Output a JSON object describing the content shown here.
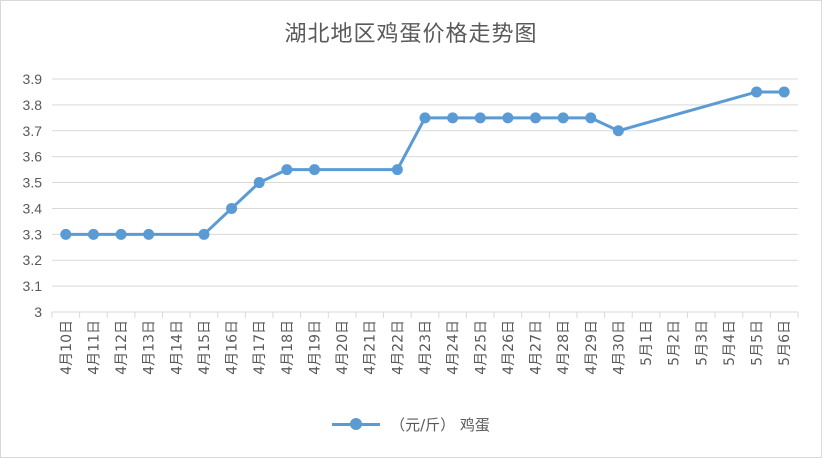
{
  "chart_data": {
    "type": "line",
    "title": "湖北地区鸡蛋价格走势图",
    "categories": [
      "4月10日",
      "4月11日",
      "4月12日",
      "4月13日",
      "4月14日",
      "4月15日",
      "4月16日",
      "4月17日",
      "4月18日",
      "4月19日",
      "4月20日",
      "4月21日",
      "4月22日",
      "4月23日",
      "4月24日",
      "4月25日",
      "4月26日",
      "4月27日",
      "4月28日",
      "4月29日",
      "4月30日",
      "5月1日",
      "5月2日",
      "5月3日",
      "5月4日",
      "5月5日",
      "5月6日"
    ],
    "series": [
      {
        "name": "（元/斤） 鸡蛋",
        "color": "#5b9bd5",
        "values": [
          3.3,
          3.3,
          3.3,
          3.3,
          null,
          3.3,
          3.4,
          3.5,
          3.55,
          3.55,
          null,
          null,
          3.55,
          3.75,
          3.75,
          3.75,
          3.75,
          3.75,
          3.75,
          3.75,
          3.7,
          null,
          null,
          null,
          null,
          3.85,
          3.85
        ]
      }
    ],
    "ylim": [
      3,
      3.9
    ],
    "yticks": [
      "3",
      "3.1",
      "3.2",
      "3.3",
      "3.4",
      "3.5",
      "3.6",
      "3.7",
      "3.8",
      "3.9"
    ],
    "grid": true,
    "legend_position": "bottom"
  }
}
